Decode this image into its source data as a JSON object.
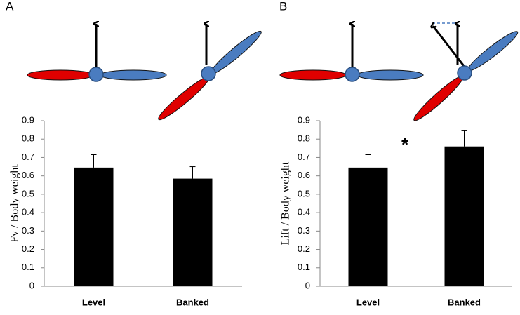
{
  "chart_data": [
    {
      "type": "bar",
      "panel_label": "A",
      "ylabel": "Fv / Body weight",
      "categories": [
        "Level",
        "Banked"
      ],
      "values": [
        0.645,
        0.585
      ],
      "errors": [
        0.07,
        0.065
      ],
      "color": "#000000",
      "ylim": [
        0,
        0.9
      ],
      "yticks": [
        0,
        0.1,
        0.2,
        0.3,
        0.4,
        0.5,
        0.6,
        0.7,
        0.8,
        0.9
      ]
    },
    {
      "type": "bar",
      "panel_label": "B",
      "ylabel": "Lift / Body weight",
      "annotation": "*",
      "categories": [
        "Level",
        "Banked"
      ],
      "values": [
        0.645,
        0.76
      ],
      "errors": [
        0.07,
        0.085
      ],
      "color": "#000000",
      "ylim": [
        0,
        0.9
      ],
      "yticks": [
        0,
        0.1,
        0.2,
        0.3,
        0.4,
        0.5,
        0.6,
        0.7,
        0.8,
        0.9
      ]
    }
  ]
}
